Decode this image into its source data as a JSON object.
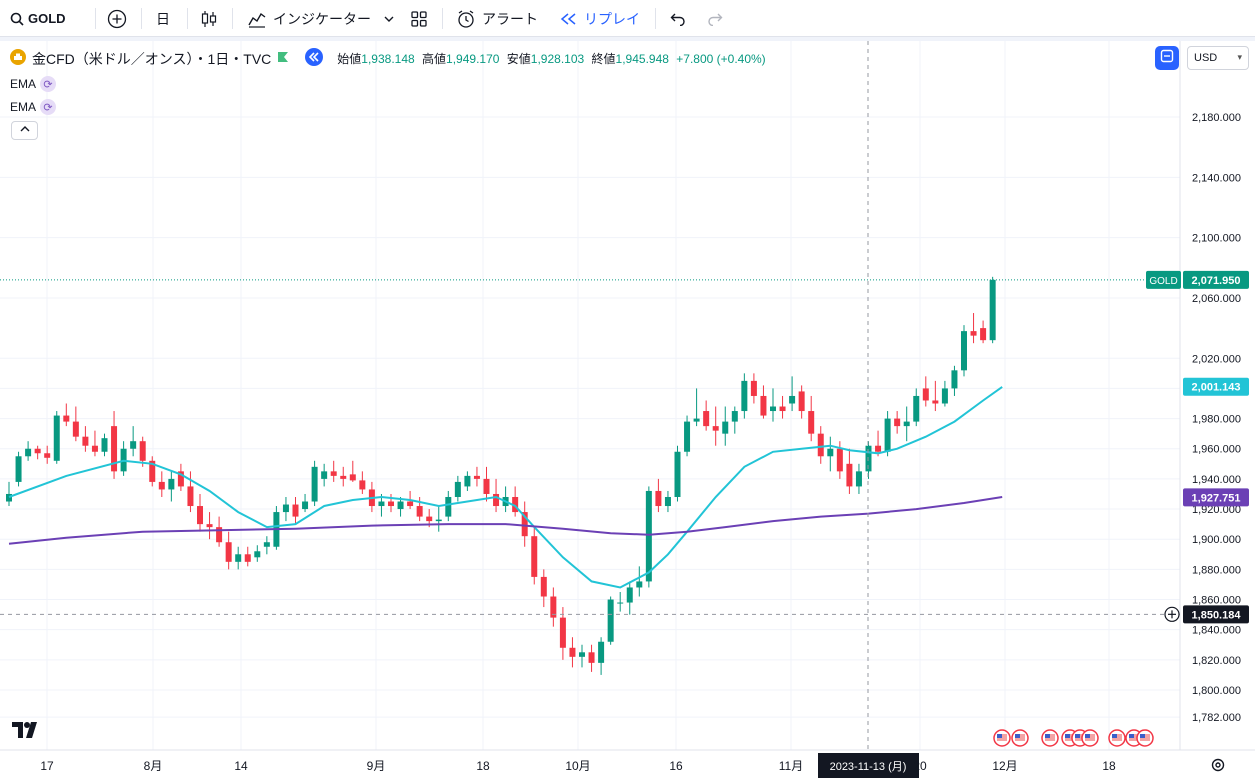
{
  "toolbar": {
    "symbol": "GOLD",
    "interval": "日",
    "indicators": "インジケーター",
    "alert": "アラート",
    "replay": "リプレイ"
  },
  "legend": {
    "title": "金CFD（米ドル／オンス）・1日・TVC",
    "open_label": "始値",
    "open": "1,938.148",
    "high_label": "高値",
    "high": "1,949.170",
    "low_label": "安値",
    "low": "1,928.103",
    "close_label": "終値",
    "close": "1,945.948",
    "change": "+7.800 (+0.40%)",
    "ema1": "EMA",
    "ema2": "EMA"
  },
  "currency": "USD",
  "colors": {
    "up": "#089981",
    "down": "#f23645",
    "ema_fast": "#22c4d6",
    "ema_slow": "#6b40b5",
    "accent": "#2962ff"
  },
  "chart_data": {
    "type": "candlestick",
    "ylim": [
      1775,
      2210
    ],
    "y_ticks": [
      1782,
      1800,
      1820,
      1840,
      1860,
      1880,
      1900,
      1920,
      1940,
      1960,
      1980,
      2000,
      2020,
      2060,
      2100,
      2140,
      2180
    ],
    "x_ticks": [
      "17",
      "8月",
      "14",
      "9月",
      "18",
      "10月",
      "16",
      "11月",
      "20",
      "12月",
      "18"
    ],
    "price_labels": [
      {
        "name": "GOLD",
        "value": "2,071.950",
        "y": 2071.95,
        "color": "#089981"
      },
      {
        "value": "2,001.143",
        "y": 2001.143,
        "color": "#22c4d6"
      },
      {
        "value": "1,927.751",
        "y": 1927.751,
        "color": "#6b40b5"
      },
      {
        "value": "1,850.184",
        "y": 1850.184,
        "color": "#131722"
      }
    ],
    "crosshair": {
      "date": "2023-11-13 (月)",
      "price": 1850.184
    },
    "candles": [
      [
        1925,
        1938,
        1922,
        1930
      ],
      [
        1938,
        1958,
        1935,
        1955
      ],
      [
        1955,
        1965,
        1952,
        1960
      ],
      [
        1960,
        1962,
        1953,
        1957
      ],
      [
        1957,
        1962,
        1950,
        1954
      ],
      [
        1952,
        1985,
        1950,
        1982
      ],
      [
        1982,
        1990,
        1975,
        1978
      ],
      [
        1978,
        1988,
        1965,
        1968
      ],
      [
        1968,
        1975,
        1958,
        1962
      ],
      [
        1962,
        1972,
        1955,
        1958
      ],
      [
        1958,
        1970,
        1955,
        1967
      ],
      [
        1975,
        1985,
        1940,
        1945
      ],
      [
        1945,
        1965,
        1942,
        1960
      ],
      [
        1960,
        1975,
        1955,
        1965
      ],
      [
        1965,
        1968,
        1948,
        1952
      ],
      [
        1952,
        1955,
        1935,
        1938
      ],
      [
        1938,
        1945,
        1928,
        1933
      ],
      [
        1933,
        1945,
        1925,
        1940
      ],
      [
        1945,
        1950,
        1932,
        1935
      ],
      [
        1935,
        1945,
        1918,
        1922
      ],
      [
        1922,
        1930,
        1905,
        1910
      ],
      [
        1910,
        1918,
        1900,
        1908
      ],
      [
        1908,
        1915,
        1895,
        1898
      ],
      [
        1898,
        1905,
        1880,
        1885
      ],
      [
        1885,
        1895,
        1880,
        1890
      ],
      [
        1890,
        1895,
        1882,
        1885
      ],
      [
        1888,
        1896,
        1885,
        1892
      ],
      [
        1895,
        1902,
        1890,
        1898
      ],
      [
        1895,
        1922,
        1893,
        1918
      ],
      [
        1918,
        1928,
        1912,
        1923
      ],
      [
        1923,
        1928,
        1910,
        1915
      ],
      [
        1920,
        1930,
        1918,
        1925
      ],
      [
        1925,
        1952,
        1922,
        1948
      ],
      [
        1940,
        1950,
        1935,
        1945
      ],
      [
        1945,
        1952,
        1938,
        1942
      ],
      [
        1942,
        1948,
        1935,
        1940
      ],
      [
        1943,
        1952,
        1938,
        1939
      ],
      [
        1939,
        1945,
        1930,
        1933
      ],
      [
        1933,
        1938,
        1918,
        1922
      ],
      [
        1922,
        1930,
        1915,
        1925
      ],
      [
        1925,
        1930,
        1918,
        1922
      ],
      [
        1920,
        1928,
        1915,
        1925
      ],
      [
        1925,
        1932,
        1920,
        1922
      ],
      [
        1922,
        1928,
        1912,
        1915
      ],
      [
        1915,
        1920,
        1908,
        1912
      ],
      [
        1912,
        1922,
        1905,
        1913
      ],
      [
        1915,
        1932,
        1912,
        1928
      ],
      [
        1928,
        1942,
        1925,
        1938
      ],
      [
        1935,
        1945,
        1932,
        1942
      ],
      [
        1942,
        1948,
        1935,
        1940
      ],
      [
        1940,
        1948,
        1925,
        1930
      ],
      [
        1930,
        1940,
        1918,
        1922
      ],
      [
        1922,
        1935,
        1918,
        1928
      ],
      [
        1928,
        1935,
        1915,
        1918
      ],
      [
        1918,
        1925,
        1895,
        1902
      ],
      [
        1902,
        1908,
        1870,
        1875
      ],
      [
        1875,
        1880,
        1855,
        1862
      ],
      [
        1862,
        1868,
        1842,
        1848
      ],
      [
        1848,
        1855,
        1820,
        1828
      ],
      [
        1828,
        1835,
        1815,
        1822
      ],
      [
        1822,
        1830,
        1815,
        1825
      ],
      [
        1825,
        1830,
        1812,
        1818
      ],
      [
        1818,
        1835,
        1810,
        1832
      ],
      [
        1832,
        1862,
        1830,
        1860
      ],
      [
        1858,
        1865,
        1852,
        1858
      ],
      [
        1858,
        1872,
        1850,
        1868
      ],
      [
        1868,
        1882,
        1862,
        1872
      ],
      [
        1872,
        1935,
        1868,
        1932
      ],
      [
        1932,
        1940,
        1918,
        1922
      ],
      [
        1922,
        1932,
        1918,
        1928
      ],
      [
        1928,
        1962,
        1925,
        1958
      ],
      [
        1958,
        1982,
        1955,
        1978
      ],
      [
        1978,
        2000,
        1975,
        1980
      ],
      [
        1985,
        1992,
        1972,
        1975
      ],
      [
        1975,
        1988,
        1962,
        1972
      ],
      [
        1970,
        1988,
        1962,
        1978
      ],
      [
        1978,
        1988,
        1970,
        1985
      ],
      [
        1985,
        2010,
        1980,
        2005
      ],
      [
        2005,
        2010,
        1990,
        1995
      ],
      [
        1995,
        2002,
        1980,
        1982
      ],
      [
        1985,
        2000,
        1978,
        1988
      ],
      [
        1988,
        1995,
        1980,
        1985
      ],
      [
        1990,
        2008,
        1985,
        1995
      ],
      [
        1998,
        2002,
        1980,
        1985
      ],
      [
        1985,
        1995,
        1965,
        1970
      ],
      [
        1970,
        1975,
        1950,
        1955
      ],
      [
        1955,
        1968,
        1945,
        1960
      ],
      [
        1960,
        1965,
        1940,
        1945
      ],
      [
        1950,
        1960,
        1930,
        1935
      ],
      [
        1935,
        1950,
        1930,
        1945
      ],
      [
        1945,
        1965,
        1940,
        1962
      ],
      [
        1962,
        1972,
        1955,
        1958
      ],
      [
        1958,
        1985,
        1955,
        1980
      ],
      [
        1980,
        1985,
        1970,
        1975
      ],
      [
        1975,
        1988,
        1965,
        1978
      ],
      [
        1978,
        2000,
        1975,
        1995
      ],
      [
        2000,
        2008,
        1988,
        1992
      ],
      [
        1992,
        2005,
        1985,
        1990
      ],
      [
        1990,
        2005,
        1988,
        2000
      ],
      [
        2000,
        2015,
        1995,
        2012
      ],
      [
        2012,
        2042,
        2008,
        2038
      ],
      [
        2038,
        2050,
        2030,
        2035
      ],
      [
        2040,
        2045,
        2030,
        2032
      ],
      [
        2032,
        2074,
        2030,
        2072
      ]
    ],
    "ema_fast": [
      [
        0,
        1928
      ],
      [
        6,
        1942
      ],
      [
        12,
        1952
      ],
      [
        15,
        1950
      ],
      [
        18,
        1943
      ],
      [
        21,
        1932
      ],
      [
        24,
        1918
      ],
      [
        27,
        1908
      ],
      [
        30,
        1910
      ],
      [
        33,
        1922
      ],
      [
        36,
        1926
      ],
      [
        39,
        1928
      ],
      [
        42,
        1926
      ],
      [
        45,
        1922
      ],
      [
        48,
        1925
      ],
      [
        51,
        1928
      ],
      [
        53,
        1922
      ],
      [
        55,
        1908
      ],
      [
        58,
        1888
      ],
      [
        61,
        1872
      ],
      [
        64,
        1868
      ],
      [
        67,
        1878
      ],
      [
        69,
        1890
      ],
      [
        71,
        1905
      ],
      [
        74,
        1928
      ],
      [
        77,
        1948
      ],
      [
        80,
        1958
      ],
      [
        83,
        1960
      ],
      [
        86,
        1962
      ],
      [
        88,
        1959
      ],
      [
        91,
        1957
      ],
      [
        93,
        1960
      ],
      [
        96,
        1968
      ],
      [
        99,
        1978
      ],
      [
        102,
        1992
      ],
      [
        104,
        2001
      ]
    ],
    "ema_slow": [
      [
        0,
        1897
      ],
      [
        6,
        1901
      ],
      [
        14,
        1905
      ],
      [
        22,
        1906
      ],
      [
        30,
        1907
      ],
      [
        38,
        1909
      ],
      [
        46,
        1910
      ],
      [
        52,
        1910
      ],
      [
        58,
        1907
      ],
      [
        63,
        1904
      ],
      [
        67,
        1903
      ],
      [
        71,
        1905
      ],
      [
        75,
        1908
      ],
      [
        80,
        1912
      ],
      [
        85,
        1915
      ],
      [
        90,
        1917
      ],
      [
        95,
        1920
      ],
      [
        100,
        1924
      ],
      [
        104,
        1928
      ]
    ]
  }
}
